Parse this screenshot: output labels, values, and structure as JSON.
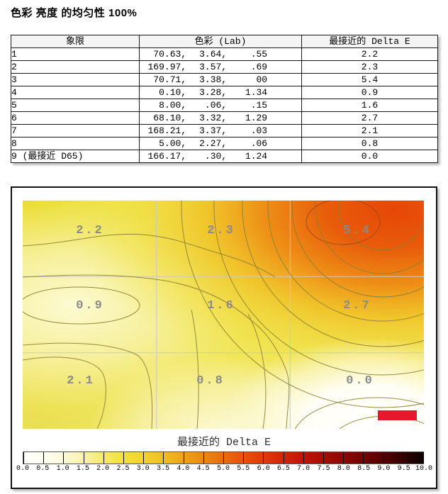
{
  "title": "色彩 亮度 的均匀性 100%",
  "table": {
    "headers": [
      "象限",
      "色彩 (Lab)",
      "最接近的 Delta E"
    ],
    "rows": [
      {
        "quadrant": "1",
        "lab": [
          "70.63,",
          "3.64,",
          ".55"
        ],
        "delta_e": "2.2"
      },
      {
        "quadrant": "2",
        "lab": [
          "169.97,",
          "3.57,",
          ".69"
        ],
        "delta_e": "2.3"
      },
      {
        "quadrant": "3",
        "lab": [
          "70.71,",
          "3.38,",
          "00"
        ],
        "delta_e": "5.4"
      },
      {
        "quadrant": "4",
        "lab": [
          "0.10,",
          "3.28,",
          "1.34"
        ],
        "delta_e": "0.9"
      },
      {
        "quadrant": "5",
        "lab": [
          "8.00,",
          ".06,",
          ".15"
        ],
        "delta_e": "1.6"
      },
      {
        "quadrant": "6",
        "lab": [
          "68.10,",
          "3.32,",
          "1.29"
        ],
        "delta_e": "2.7"
      },
      {
        "quadrant": "7",
        "lab": [
          "168.21,",
          "3.37,",
          ".03"
        ],
        "delta_e": "2.1"
      },
      {
        "quadrant": "8",
        "lab": [
          "5.00,",
          "2.27,",
          ".06"
        ],
        "delta_e": "0.8"
      },
      {
        "quadrant": "9 (最接近 D65)",
        "lab": [
          "166.17,",
          ".30,",
          "1.24"
        ],
        "delta_e": "0.0"
      }
    ]
  },
  "chart_data": {
    "type": "heatmap",
    "title": "",
    "grid_rows": 3,
    "grid_cols": 3,
    "values": [
      [
        2.2,
        2.3,
        5.4
      ],
      [
        0.9,
        1.6,
        2.7
      ],
      [
        2.1,
        0.8,
        0.0
      ]
    ],
    "value_labels": [
      "2.2",
      "2.3",
      "5.4",
      "0.9",
      "1.6",
      "2.7",
      "2.1",
      "0.8",
      "0.0"
    ],
    "label_color": "#8a8a8a",
    "grid_line_color": "#c9c9c9",
    "marker_color": "#e8172c",
    "colorbar": {
      "label": "最接近的 Delta E",
      "min": 0.0,
      "max": 10.0,
      "tick_step": 0.5,
      "ticks": [
        "0.0",
        "0.5",
        "1.0",
        "1.5",
        "2.0",
        "2.5",
        "3.0",
        "3.5",
        "4.0",
        "4.5",
        "5.0",
        "5.5",
        "6.0",
        "6.5",
        "7.0",
        "7.5",
        "8.0",
        "8.5",
        "9.0",
        "9.5",
        "10.0"
      ],
      "stops": [
        [
          0.0,
          "#ffffff"
        ],
        [
          0.05,
          "#fefdf0"
        ],
        [
          0.1,
          "#fcf9d8"
        ],
        [
          0.15,
          "#f9f2ae"
        ],
        [
          0.2,
          "#f5ea68"
        ],
        [
          0.25,
          "#f2e13c"
        ],
        [
          0.3,
          "#f1d32e"
        ],
        [
          0.35,
          "#f0bf24"
        ],
        [
          0.4,
          "#eea31b"
        ],
        [
          0.45,
          "#ec8813"
        ],
        [
          0.5,
          "#ea6d0e"
        ],
        [
          0.55,
          "#e8520a"
        ],
        [
          0.6,
          "#e23a08"
        ],
        [
          0.65,
          "#d22507"
        ],
        [
          0.7,
          "#bf1406"
        ],
        [
          0.75,
          "#a80c05"
        ],
        [
          0.8,
          "#8e0704"
        ],
        [
          0.85,
          "#720403"
        ],
        [
          0.9,
          "#540201"
        ],
        [
          0.95,
          "#320100"
        ],
        [
          1.0,
          "#0d0000"
        ]
      ]
    }
  }
}
